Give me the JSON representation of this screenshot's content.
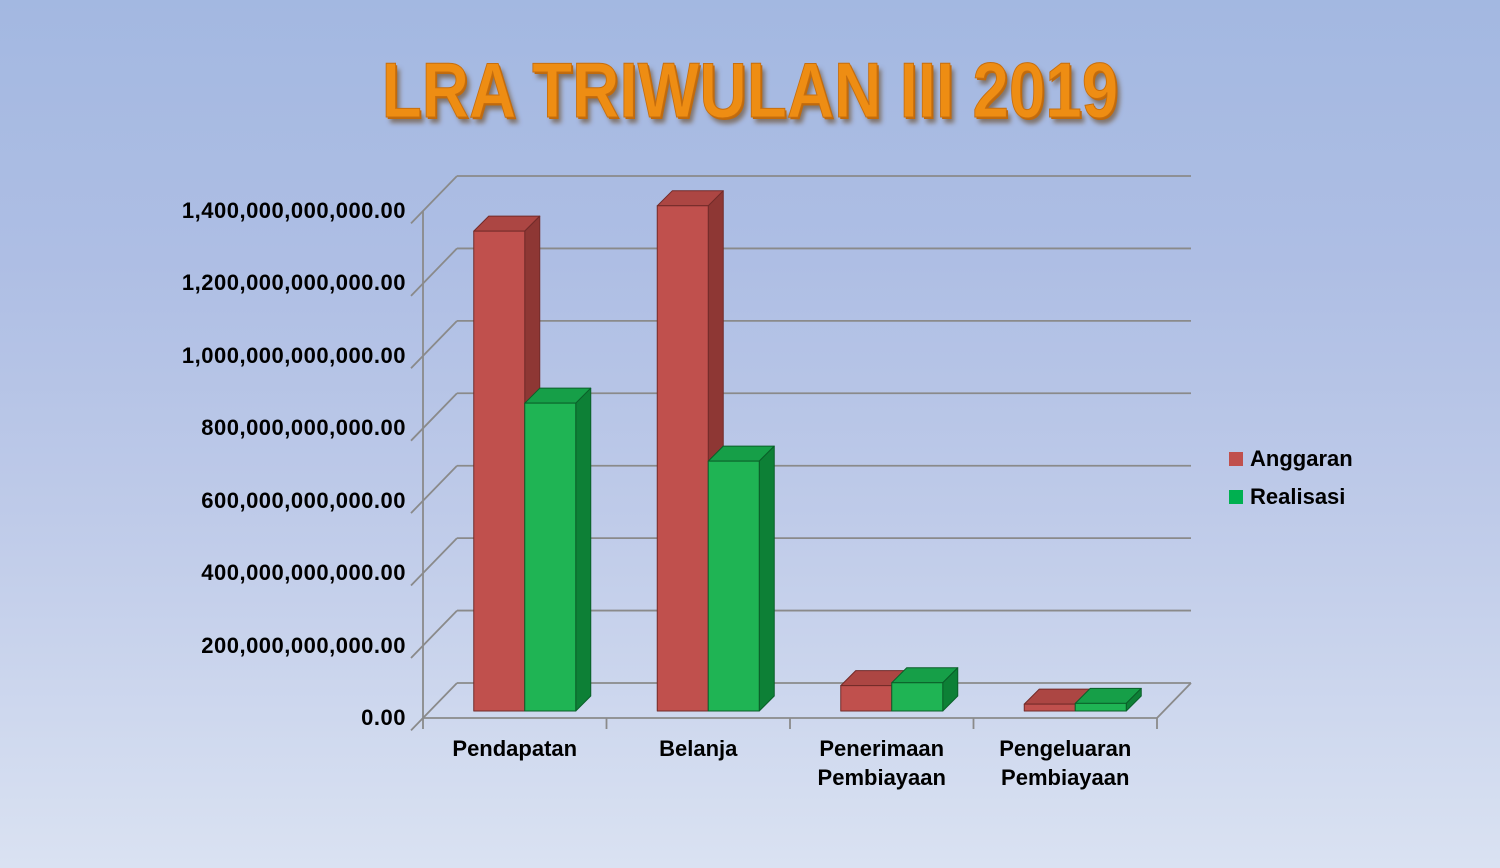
{
  "title": "LRA TRIWULAN III 2019",
  "page": {
    "background_top": "#A3B8E1",
    "background_bottom": "#DAE2F2",
    "title_color": "#EE8D13",
    "title_shadow_color": "#C06A0C",
    "gridline_color": "#8A8A8A",
    "axis_text_color": "#000000"
  },
  "legend": {
    "position": "right",
    "items": [
      {
        "label": "Anggaran",
        "color": "#C0504D"
      },
      {
        "label": "Realisasi",
        "color": "#00B050"
      }
    ]
  },
  "chart_data": {
    "type": "bar",
    "style": "3d-clustered-column",
    "title": "LRA TRIWULAN III 2019",
    "xlabel": "",
    "ylabel": "",
    "categories": [
      "Pendapatan",
      "Belanja",
      "Penerimaan Pembiayaan",
      "Pengeluaran Pembiayaan"
    ],
    "category_lines": [
      [
        "Pendapatan"
      ],
      [
        "Belanja"
      ],
      [
        "Penerimaan",
        "Pembiayaan"
      ],
      [
        "Pengeluaran",
        "Pembiayaan"
      ]
    ],
    "series": [
      {
        "name": "Anggaran",
        "values": [
          1325000000000,
          1395000000000,
          70000000000,
          19000000000
        ],
        "shades": {
          "front": "#C0504D",
          "top": "#AC4643",
          "side": "#8E3734",
          "edge": "#722B29"
        }
      },
      {
        "name": "Realisasi",
        "values": [
          850000000000,
          690000000000,
          78000000000,
          21000000000
        ],
        "shades": {
          "front": "#1FB454",
          "top": "#169F48",
          "side": "#0D8036",
          "edge": "#0A5F29"
        }
      }
    ],
    "ylim": [
      0,
      1400000000000
    ],
    "ytick_step": 200000000000,
    "ytick_labels": [
      "0.00",
      "200,000,000,000.00",
      "400,000,000,000.00",
      "600,000,000,000.00",
      "800,000,000,000.00",
      "1,000,000,000,000.00",
      "1,200,000,000,000.00",
      "1,400,000,000,000.00"
    ],
    "grid": true,
    "legend_position": "right"
  }
}
